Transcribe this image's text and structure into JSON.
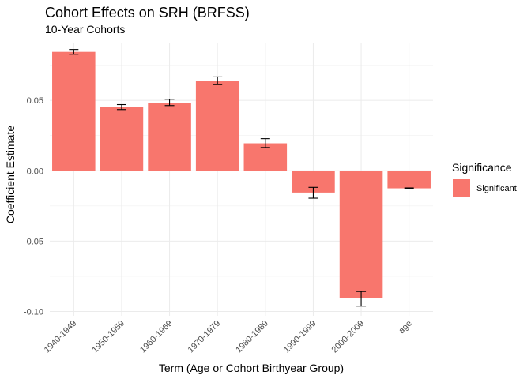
{
  "chart_data": {
    "type": "bar",
    "title": "Cohort Effects on SRH (BRFSS)",
    "subtitle": "10-Year Cohorts",
    "xlabel": "Term (Age or Cohort Birthyear Group)",
    "ylabel": "Coefficient Estimate",
    "categories": [
      "1940-1949",
      "1950-1959",
      "1960-1969",
      "1970-1979",
      "1980-1989",
      "1990-1999",
      "2000-2009",
      "age"
    ],
    "values": [
      0.0845,
      0.0452,
      0.0483,
      0.0637,
      0.0195,
      -0.0155,
      -0.0905,
      -0.0125
    ],
    "error_low": [
      0.0828,
      0.0435,
      0.0463,
      0.0612,
      0.0165,
      -0.0195,
      -0.0962,
      -0.0128
    ],
    "error_high": [
      0.0862,
      0.047,
      0.0508,
      0.0667,
      0.0228,
      -0.0118,
      -0.0858,
      -0.0122
    ],
    "ylim": [
      -0.1,
      0.1
    ],
    "yticks": [
      -0.1,
      -0.05,
      0.0,
      0.05
    ],
    "ytick_labels": [
      "-0.10",
      "-0.05",
      "0.00",
      "0.05"
    ],
    "grid": true,
    "bar_color": "#F8766D",
    "legend": {
      "title": "Significance",
      "position": "right",
      "items": [
        {
          "label": "Significant",
          "color": "#F8766D"
        }
      ]
    }
  }
}
